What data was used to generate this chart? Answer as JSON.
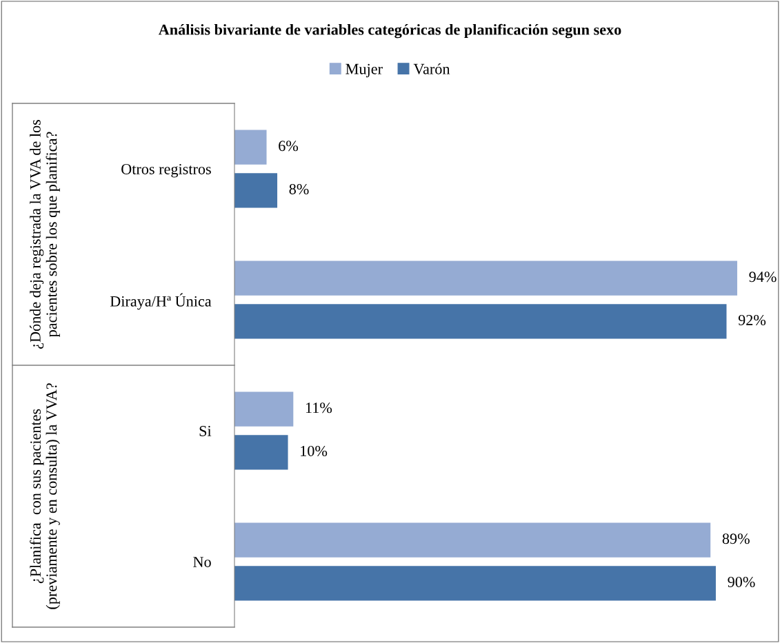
{
  "chart_data": {
    "type": "bar",
    "orientation": "horizontal",
    "title": "Análisis bivariante de variables categóricas de planificación segun sexo",
    "categories": [
      "Otros registros",
      "Diraya/Hª Única",
      "Si",
      "No"
    ],
    "series": [
      {
        "name": "Mujer",
        "color": "#95abd3",
        "values": [
          6,
          94,
          11,
          89
        ],
        "value_labels": [
          "6%",
          "94%",
          "11%",
          "89%"
        ]
      },
      {
        "name": "Varón",
        "color": "#4674a8",
        "values": [
          8,
          92,
          10,
          90
        ],
        "value_labels": [
          "8%",
          "92%",
          "10%",
          "90%"
        ]
      }
    ],
    "annotations": [
      "¿Dónde deja registrada la VVA de los pacientes sobre los que planifica?",
      "¿Planifica  con sus pacientes (previamente y en consulta) la VVA?"
    ],
    "legend": "top",
    "grid": false
  }
}
